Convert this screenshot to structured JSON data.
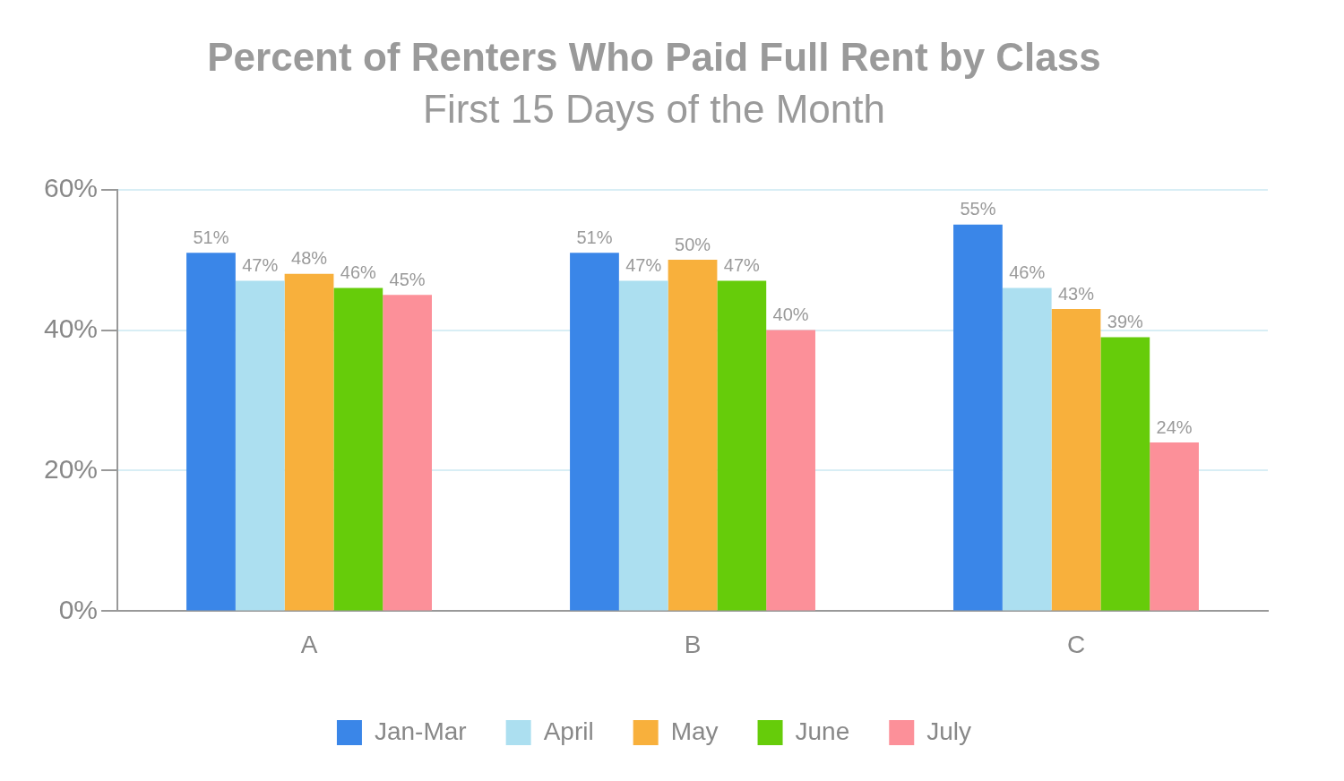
{
  "chart_data": {
    "type": "bar",
    "title": "Percent of Renters Who Paid Full Rent by Class",
    "subtitle": "First 15 Days of the Month",
    "categories": [
      "A",
      "B",
      "C"
    ],
    "series": [
      {
        "name": "Jan-Mar",
        "color": "#3a86e8",
        "values": [
          51,
          51,
          55
        ],
        "value_labels": [
          "51%",
          "51%",
          "55%"
        ]
      },
      {
        "name": "April",
        "color": "#acdff0",
        "values": [
          47,
          47,
          46
        ],
        "value_labels": [
          "47%",
          "47%",
          "46%"
        ]
      },
      {
        "name": "May",
        "color": "#f8b03c",
        "values": [
          48,
          50,
          43
        ],
        "value_labels": [
          "48%",
          "50%",
          "43%"
        ]
      },
      {
        "name": "June",
        "color": "#66cc0a",
        "values": [
          46,
          47,
          39
        ],
        "value_labels": [
          "46%",
          "47%",
          "39%"
        ]
      },
      {
        "name": "July",
        "color": "#fc9099",
        "values": [
          45,
          40,
          24
        ],
        "value_labels": [
          "45%",
          "40%",
          "24%"
        ]
      }
    ],
    "ylim": [
      0,
      60
    ],
    "yticks": [
      {
        "value": 0,
        "label": "0%"
      },
      {
        "value": 20,
        "label": "20%"
      },
      {
        "value": 40,
        "label": "40%"
      },
      {
        "value": 60,
        "label": "60%"
      }
    ],
    "grid": true,
    "legend": "bottom",
    "data_labels": true
  }
}
